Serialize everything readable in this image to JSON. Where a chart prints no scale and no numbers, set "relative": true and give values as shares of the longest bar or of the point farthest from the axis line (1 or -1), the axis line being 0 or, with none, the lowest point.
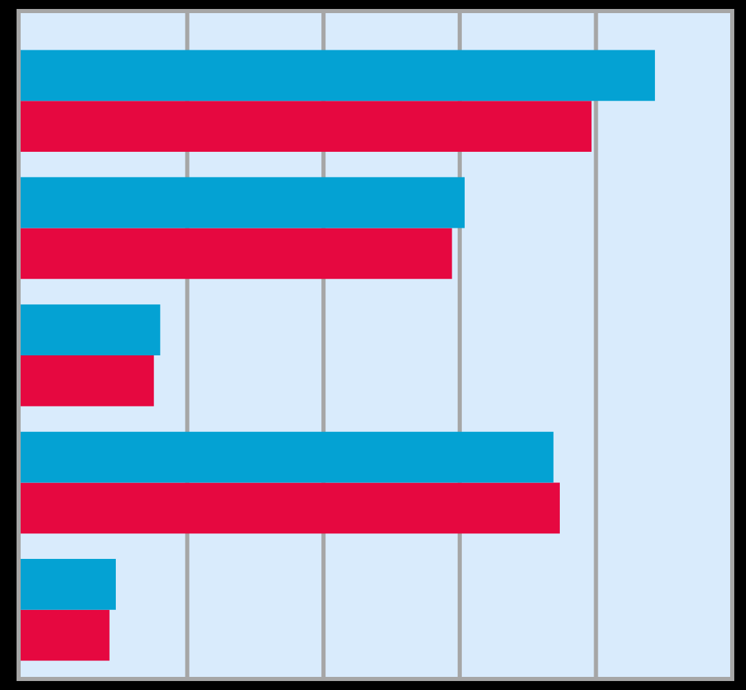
{
  "chart_data": {
    "type": "bar",
    "orientation": "horizontal",
    "relative": true,
    "categories": [
      null,
      null,
      null,
      null,
      null
    ],
    "series": [
      {
        "color": "#04a2d3",
        "values": [
          1,
          0.7,
          0.22,
          0.84,
          0.15
        ]
      },
      {
        "color": "#e60840",
        "values": [
          0.9,
          0.68,
          0.21,
          0.85,
          0.14
        ]
      }
    ],
    "grid": "x"
  }
}
